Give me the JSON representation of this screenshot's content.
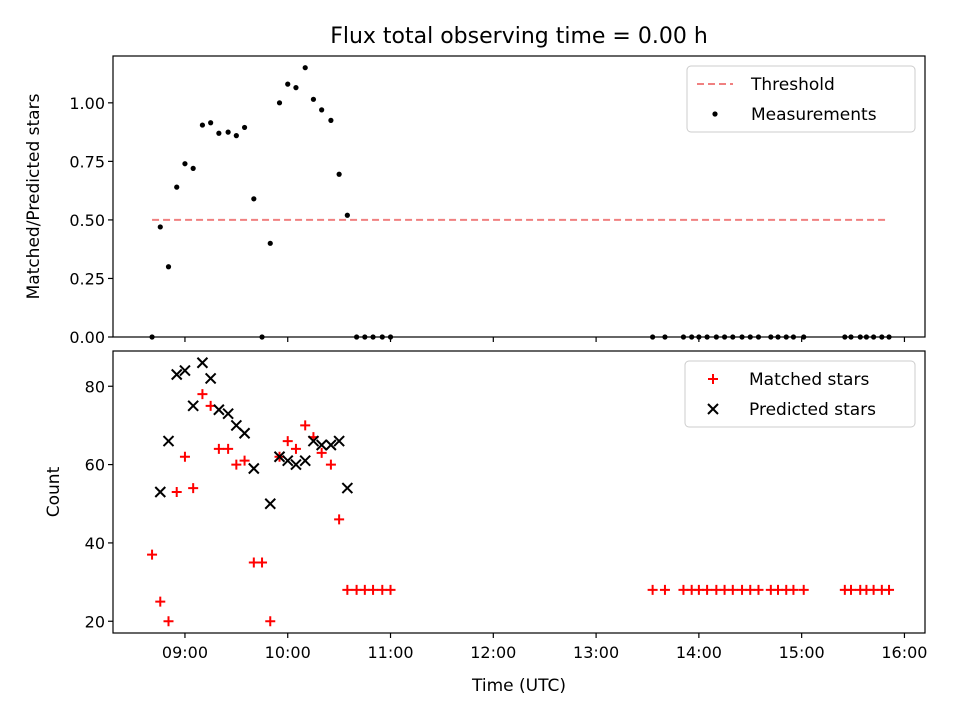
{
  "figure": {
    "title": "Flux total observing time = 0.00 h",
    "xlabel": "Time (UTC)",
    "x_tick_labels": [
      "09:00",
      "10:00",
      "11:00",
      "12:00",
      "13:00",
      "14:00",
      "15:00",
      "16:00"
    ]
  },
  "chart_data": [
    {
      "type": "scatter",
      "title": "Flux total observing time = 0.00 h",
      "xlabel": "",
      "ylabel": "Matched/Predicted stars",
      "x_unit": "hours UTC",
      "xlim": [
        8.3,
        16.2
      ],
      "ylim": [
        0,
        1.2
      ],
      "y_ticks": [
        0,
        0.25,
        0.5,
        0.75,
        1.0
      ],
      "y_tick_labels": [
        "0.00",
        "0.25",
        "0.50",
        "0.75",
        "1.00"
      ],
      "legend": {
        "position": "top-right",
        "entries": [
          "Threshold",
          "Measurements"
        ]
      },
      "series": [
        {
          "name": "Threshold",
          "kind": "dashed-line",
          "color": "#f08080",
          "x": [
            8.68,
            15.85
          ],
          "y": [
            0.5,
            0.5
          ]
        },
        {
          "name": "Measurements",
          "kind": "dot",
          "color": "#000000",
          "x": [
            8.68,
            8.76,
            8.84,
            8.92,
            9.0,
            9.08,
            9.17,
            9.25,
            9.33,
            9.42,
            9.5,
            9.58,
            9.67,
            9.75,
            9.83,
            9.92,
            10.0,
            10.08,
            10.17,
            10.25,
            10.33,
            10.42,
            10.5,
            10.58,
            10.67,
            10.75,
            10.83,
            10.92,
            11.0,
            13.55,
            13.67,
            13.85,
            13.93,
            14.0,
            14.08,
            14.17,
            14.25,
            14.33,
            14.42,
            14.5,
            14.58,
            14.7,
            14.77,
            14.85,
            14.92,
            15.02,
            15.42,
            15.48,
            15.57,
            15.63,
            15.7,
            15.78,
            15.85
          ],
          "y": [
            0.0,
            0.47,
            0.3,
            0.64,
            0.74,
            0.72,
            0.905,
            0.915,
            0.87,
            0.875,
            0.86,
            0.895,
            0.59,
            0.0,
            0.4,
            1.0,
            1.08,
            1.065,
            1.15,
            1.015,
            0.97,
            0.925,
            0.695,
            0.52,
            0.0,
            0.0,
            0.0,
            0.0,
            0.0,
            0.0,
            0.0,
            0.0,
            0.0,
            0.0,
            0.0,
            0.0,
            0.0,
            0.0,
            0.0,
            0.0,
            0.0,
            0.0,
            0.0,
            0.0,
            0.0,
            0.0,
            0.0,
            0.0,
            0.0,
            0.0,
            0.0,
            0.0,
            0.0
          ]
        }
      ]
    },
    {
      "type": "scatter",
      "xlabel": "Time (UTC)",
      "ylabel": "Count",
      "x_unit": "hours UTC",
      "xlim": [
        8.3,
        16.2
      ],
      "ylim": [
        17,
        89
      ],
      "y_ticks": [
        20,
        40,
        60,
        80
      ],
      "y_tick_labels": [
        "20",
        "40",
        "60",
        "80"
      ],
      "x_ticks": [
        9,
        10,
        11,
        12,
        13,
        14,
        15,
        16
      ],
      "x_tick_labels": [
        "09:00",
        "10:00",
        "11:00",
        "12:00",
        "13:00",
        "14:00",
        "15:00",
        "16:00"
      ],
      "legend": {
        "position": "top-right",
        "entries": [
          "Matched stars",
          "Predicted stars"
        ]
      },
      "series": [
        {
          "name": "Matched stars",
          "kind": "plus",
          "color": "#ff0000",
          "x": [
            8.68,
            8.76,
            8.84,
            8.92,
            9.0,
            9.08,
            9.17,
            9.25,
            9.33,
            9.42,
            9.5,
            9.58,
            9.67,
            9.75,
            9.83,
            9.92,
            10.0,
            10.08,
            10.17,
            10.25,
            10.33,
            10.42,
            10.5,
            10.58,
            10.67,
            10.75,
            10.83,
            10.92,
            11.0,
            13.55,
            13.67,
            13.85,
            13.93,
            14.0,
            14.08,
            14.17,
            14.25,
            14.33,
            14.42,
            14.5,
            14.58,
            14.7,
            14.77,
            14.85,
            14.92,
            15.02,
            15.42,
            15.48,
            15.57,
            15.63,
            15.7,
            15.78,
            15.85
          ],
          "y": [
            37,
            25,
            20,
            53,
            62,
            54,
            78,
            75,
            64,
            64,
            60,
            61,
            35,
            35,
            20,
            62,
            66,
            64,
            70,
            67,
            63,
            60,
            46,
            28,
            28,
            28,
            28,
            28,
            28,
            28,
            28,
            28,
            28,
            28,
            28,
            28,
            28,
            28,
            28,
            28,
            28,
            28,
            28,
            28,
            28,
            28,
            28,
            28,
            28,
            28,
            28,
            28,
            28
          ]
        },
        {
          "name": "Predicted stars",
          "kind": "x",
          "color": "#000000",
          "x": [
            8.76,
            8.84,
            8.92,
            9.0,
            9.08,
            9.17,
            9.25,
            9.33,
            9.42,
            9.5,
            9.58,
            9.67,
            9.83,
            9.92,
            10.0,
            10.08,
            10.17,
            10.25,
            10.33,
            10.42,
            10.5,
            10.58
          ],
          "y": [
            53,
            66,
            83,
            84,
            75,
            86,
            82,
            74,
            73,
            70,
            68,
            59,
            50,
            62,
            61,
            60,
            61,
            66,
            65,
            65,
            66,
            54
          ]
        }
      ]
    }
  ]
}
